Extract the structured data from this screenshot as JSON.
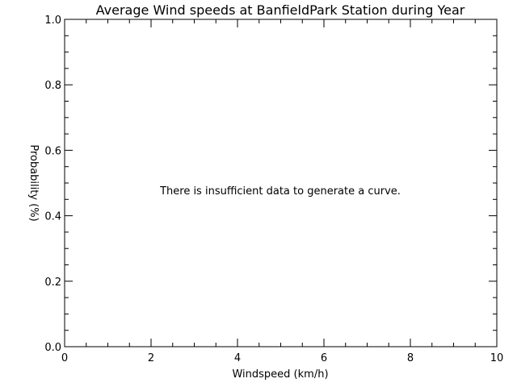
{
  "chart_data": {
    "type": "line",
    "title": "Average Wind speeds at BanfieldPark Station during Year",
    "xlabel": "Windspeed (km/h)",
    "ylabel": "Probability (%)",
    "xlim": [
      0,
      10
    ],
    "ylim": [
      0.0,
      1.0
    ],
    "x_ticks": [
      "0",
      "2",
      "4",
      "6",
      "8",
      "10"
    ],
    "y_ticks": [
      "0.0",
      "0.2",
      "0.4",
      "0.6",
      "0.8",
      "1.0"
    ],
    "grid": false,
    "series": [],
    "annotation": "There is insufficient data to generate a curve."
  }
}
